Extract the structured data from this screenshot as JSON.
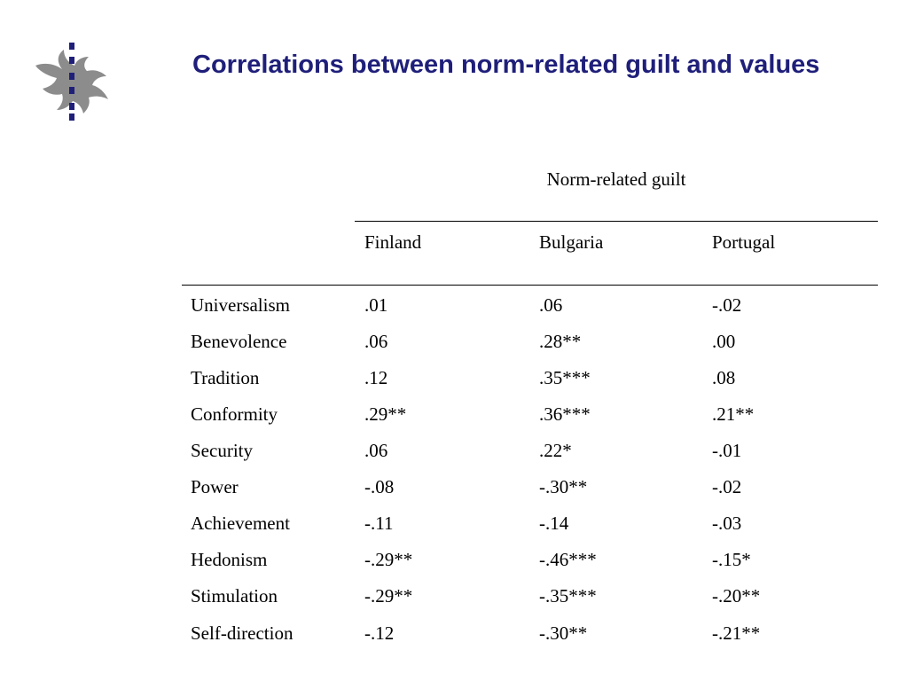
{
  "slide": {
    "title": "Correlations between norm-related guilt and values"
  },
  "table": {
    "group_header": "Norm-related guilt",
    "columns": [
      "Finland",
      "Bulgaria",
      "Portugal"
    ],
    "rows": [
      {
        "label": "Universalism",
        "values": [
          ".01",
          ".06",
          "-.02"
        ]
      },
      {
        "label": "Benevolence",
        "values": [
          ".06",
          ".28**",
          ".00"
        ]
      },
      {
        "label": "Tradition",
        "values": [
          ".12",
          ".35***",
          ".08"
        ]
      },
      {
        "label": "Conformity",
        "values": [
          ".29**",
          ".36***",
          ".21**"
        ]
      },
      {
        "label": "Security",
        "values": [
          ".06",
          ".22*",
          "-.01"
        ]
      },
      {
        "label": "Power",
        "values": [
          "-.08",
          "-.30**",
          "-.02"
        ]
      },
      {
        "label": "Achievement",
        "values": [
          "-.11",
          "-.14",
          "-.03"
        ]
      },
      {
        "label": "Hedonism",
        "values": [
          "-.29**",
          "-.46***",
          "-.15*"
        ]
      },
      {
        "label": "Stimulation",
        "values": [
          "-.29**",
          "-.35***",
          "-.20**"
        ]
      },
      {
        "label": "Self-direction",
        "values": [
          "-.12",
          "-.30**",
          "-.21**"
        ]
      }
    ]
  },
  "colors": {
    "title": "#1f1f7a",
    "logo_flame": "#8c8c8c",
    "logo_dots": "#1f1f7a"
  }
}
